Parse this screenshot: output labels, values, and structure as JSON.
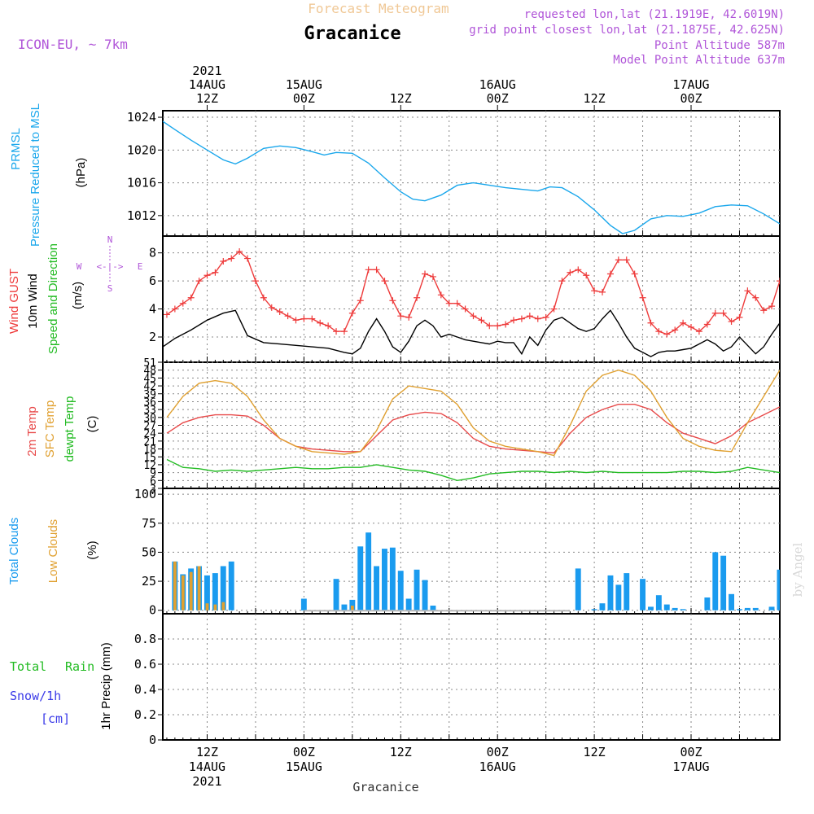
{
  "header": {
    "subtitle": "Forecast Meteogram",
    "location": "Gracanice",
    "model": "ICON-EU, ~ 7km",
    "requested": "requested lon,lat (21.1919E, 42.6019N)",
    "gridpoint": "grid point closest lon,lat (21.1875E, 42.625N)",
    "point_alt": "Point Altitude 587m",
    "model_alt": "Model Point Altitude 637m",
    "footer_location": "Gracanice",
    "watermark": "by Angel"
  },
  "colors": {
    "pressure": "#1aa7ec",
    "gust": "#ee3b3b",
    "wind": "#000000",
    "t2m": "#e84a4a",
    "sfc": "#e0a030",
    "dewpt": "#22bb22",
    "total_clouds": "#1a9bef",
    "low_clouds": "#e0a030",
    "rain": "#22bb22",
    "snow": "#3a3ae8",
    "purple": "#b055d8"
  },
  "time_axis": {
    "top_ticks": [
      {
        "h": 0,
        "l1": "2021",
        "l2": "14AUG",
        "l3": "12Z"
      },
      {
        "h": 12,
        "l1": "",
        "l2": "15AUG",
        "l3": "00Z"
      },
      {
        "h": 24,
        "l1": "",
        "l2": "",
        "l3": "12Z"
      },
      {
        "h": 36,
        "l1": "",
        "l2": "16AUG",
        "l3": "00Z"
      },
      {
        "h": 48,
        "l1": "",
        "l2": "",
        "l3": "12Z"
      },
      {
        "h": 60,
        "l1": "",
        "l2": "17AUG",
        "l3": "00Z"
      }
    ],
    "bottom_ticks": [
      {
        "h": 0,
        "l1": "12Z",
        "l2": "14AUG",
        "l3": "2021"
      },
      {
        "h": 12,
        "l1": "00Z",
        "l2": "15AUG",
        "l3": ""
      },
      {
        "h": 24,
        "l1": "12Z",
        "l2": "",
        "l3": ""
      },
      {
        "h": 36,
        "l1": "00Z",
        "l2": "16AUG",
        "l3": ""
      },
      {
        "h": 48,
        "l1": "12Z",
        "l2": "",
        "l3": ""
      },
      {
        "h": 60,
        "l1": "00Z",
        "l2": "17AUG",
        "l3": ""
      }
    ],
    "hour_range": [
      -5.5,
      71
    ]
  },
  "chart_data": [
    {
      "type": "line",
      "id": "pressure",
      "labels": [
        "PRMSL",
        "Pressure Reduced to MSL",
        "(hPa)"
      ],
      "ylim": [
        1009.5,
        1024.8
      ],
      "yticks": [
        1012,
        1016,
        1020,
        1024
      ],
      "series": [
        {
          "name": "PRMSL",
          "x": [
            -5.5,
            -4,
            -2,
            0,
            2,
            3.5,
            5,
            7,
            9,
            11,
            13,
            14.5,
            16,
            18,
            20,
            22,
            24,
            25.5,
            27,
            29,
            31,
            33,
            35,
            37,
            39,
            41,
            42.5,
            44,
            46,
            48,
            50,
            51.5,
            53,
            55,
            57,
            59,
            61,
            63,
            65,
            67,
            69,
            71
          ],
          "values": [
            1023.5,
            1022.5,
            1021.2,
            1020.0,
            1018.8,
            1018.3,
            1019.0,
            1020.2,
            1020.5,
            1020.3,
            1019.8,
            1019.4,
            1019.7,
            1019.6,
            1018.4,
            1016.6,
            1014.9,
            1014.0,
            1013.8,
            1014.5,
            1015.7,
            1016.0,
            1015.7,
            1015.4,
            1015.2,
            1015.0,
            1015.5,
            1015.4,
            1014.3,
            1012.7,
            1010.8,
            1009.8,
            1010.2,
            1011.6,
            1012.0,
            1011.9,
            1012.3,
            1013.1,
            1013.3,
            1013.2,
            1012.2,
            1011.0
          ]
        }
      ]
    },
    {
      "type": "line",
      "id": "wind",
      "labels": [
        "Wind GUST",
        "10m Wind",
        "Speed and Direction",
        "(m/s)"
      ],
      "compass": {
        "n": "N",
        "s": "S",
        "w": "W",
        "e": "E",
        "arrow": "<-|->"
      },
      "ylim": [
        0.2,
        9.2
      ],
      "yticks": [
        2,
        4,
        6,
        8
      ],
      "series": [
        {
          "name": "Wind GUST",
          "x": [
            -5,
            -4,
            -3,
            -2,
            -1,
            0,
            1,
            2,
            3,
            4,
            5,
            6,
            7,
            8,
            9,
            10,
            11,
            12,
            13,
            14,
            15,
            16,
            17,
            18,
            19,
            20,
            21,
            22,
            23,
            24,
            25,
            26,
            27,
            28,
            29,
            30,
            31,
            32,
            33,
            34,
            35,
            36,
            37,
            38,
            39,
            40,
            41,
            42,
            43,
            44,
            45,
            46,
            47,
            48,
            49,
            50,
            51,
            52,
            53,
            54,
            55,
            56,
            57,
            58,
            59,
            60,
            61,
            62,
            63,
            64,
            65,
            66,
            67,
            68,
            69,
            70,
            71
          ],
          "values": [
            3.6,
            4.0,
            4.4,
            4.8,
            6.0,
            6.4,
            6.6,
            7.4,
            7.6,
            8.1,
            7.6,
            6.0,
            4.8,
            4.1,
            3.8,
            3.5,
            3.2,
            3.3,
            3.3,
            3.0,
            2.8,
            2.4,
            2.4,
            3.7,
            4.6,
            6.8,
            6.8,
            6.0,
            4.6,
            3.5,
            3.4,
            4.8,
            6.5,
            6.3,
            5.0,
            4.4,
            4.4,
            4.0,
            3.5,
            3.2,
            2.8,
            2.8,
            2.9,
            3.2,
            3.3,
            3.5,
            3.3,
            3.4,
            4.0,
            6.0,
            6.6,
            6.8,
            6.4,
            5.3,
            5.2,
            6.5,
            7.5,
            7.5,
            6.5,
            4.8,
            3.0,
            2.4,
            2.2,
            2.5,
            3.0,
            2.7,
            2.4,
            2.9,
            3.7,
            3.7,
            3.1,
            3.4,
            5.3,
            4.8,
            3.9,
            4.2,
            6.0
          ]
        },
        {
          "name": "10m Wind",
          "x": [
            -5.5,
            -4,
            -2,
            0,
            2,
            3.5,
            5,
            7,
            9,
            11,
            13,
            15,
            17,
            18,
            19,
            20,
            21,
            22,
            23,
            24,
            25,
            26,
            27,
            28,
            29,
            30,
            31,
            32,
            33,
            34,
            35,
            36,
            37,
            38,
            39,
            40,
            41,
            42,
            43,
            44,
            45,
            46,
            47,
            48,
            49,
            50,
            51,
            52,
            53,
            54,
            55,
            56,
            57,
            58,
            59,
            60,
            61,
            62,
            63,
            64,
            65,
            66,
            67,
            68,
            69,
            70,
            71
          ],
          "values": [
            1.3,
            1.9,
            2.5,
            3.2,
            3.7,
            3.9,
            2.1,
            1.6,
            1.5,
            1.4,
            1.3,
            1.2,
            0.9,
            0.8,
            1.2,
            2.4,
            3.3,
            2.4,
            1.3,
            0.9,
            1.7,
            2.8,
            3.2,
            2.8,
            2.0,
            2.2,
            2.0,
            1.8,
            1.7,
            1.6,
            1.5,
            1.7,
            1.6,
            1.6,
            0.8,
            2.0,
            1.4,
            2.5,
            3.2,
            3.4,
            3.0,
            2.6,
            2.4,
            2.6,
            3.3,
            3.9,
            3.0,
            2.0,
            1.2,
            0.9,
            0.6,
            0.9,
            1.0,
            1.0,
            1.1,
            1.2,
            1.5,
            1.8,
            1.5,
            1.0,
            1.3,
            2.0,
            1.4,
            0.8,
            1.3,
            2.2,
            3.0
          ]
        }
      ]
    },
    {
      "type": "line",
      "id": "temperature",
      "labels": [
        "2m Temp",
        "SFC Temp",
        "dewpt Temp",
        "(C)"
      ],
      "ylim": [
        3,
        51
      ],
      "yticks": [
        3,
        6,
        9,
        12,
        15,
        18,
        21,
        24,
        27,
        30,
        33,
        36,
        39,
        42,
        45,
        48,
        51
      ],
      "series": [
        {
          "name": "2m Temp",
          "x": [
            -5,
            -3,
            -1,
            1,
            3,
            5,
            7,
            9,
            11,
            13,
            15,
            17,
            19,
            21,
            23,
            25,
            27,
            29,
            31,
            33,
            35,
            37,
            39,
            41,
            43,
            45,
            47,
            49,
            51,
            53,
            55,
            57,
            59,
            61,
            63,
            65,
            67,
            69,
            71
          ],
          "values": [
            24,
            28,
            30,
            31,
            31,
            30.5,
            27,
            22,
            19,
            18,
            17.5,
            17,
            17,
            23,
            29,
            31,
            32,
            31.5,
            28,
            22,
            19,
            18,
            17.5,
            17,
            16.5,
            24,
            30,
            33,
            35,
            35,
            33,
            28,
            24,
            22,
            20,
            23,
            28,
            31,
            34
          ]
        },
        {
          "name": "SFC Temp",
          "x": [
            -5,
            -3,
            -1,
            1,
            3,
            5,
            7,
            9,
            11,
            13,
            15,
            17,
            19,
            21,
            23,
            25,
            27,
            29,
            31,
            33,
            35,
            37,
            39,
            41,
            43,
            45,
            47,
            49,
            51,
            53,
            55,
            57,
            59,
            61,
            63,
            65,
            67,
            69,
            71
          ],
          "values": [
            30,
            38,
            43,
            44,
            43,
            38,
            29,
            22,
            19,
            17,
            16.5,
            16,
            17,
            25,
            37,
            42,
            41,
            40,
            35,
            26,
            21,
            19,
            18,
            17,
            15.5,
            27,
            40,
            46,
            48,
            46,
            40,
            30,
            22,
            19,
            17.5,
            17,
            28,
            38,
            48
          ]
        },
        {
          "name": "dewpt Temp",
          "x": [
            -5,
            -3,
            -1,
            1,
            3,
            5,
            7,
            9,
            11,
            13,
            15,
            17,
            19,
            21,
            23,
            25,
            27,
            29,
            31,
            33,
            35,
            37,
            39,
            41,
            43,
            45,
            47,
            49,
            51,
            53,
            55,
            57,
            59,
            61,
            63,
            65,
            67,
            69,
            71
          ],
          "values": [
            14,
            11,
            10.5,
            9.5,
            10,
            9.5,
            10,
            10.5,
            11,
            10.5,
            10.5,
            11,
            11,
            12,
            11,
            10,
            9.5,
            8,
            6,
            7,
            8.5,
            9,
            9.5,
            9.5,
            9,
            9.5,
            9,
            9.5,
            9,
            9,
            9,
            9,
            9.5,
            9.5,
            9,
            9.5,
            11,
            10,
            9
          ]
        }
      ]
    },
    {
      "type": "bar",
      "id": "clouds",
      "labels": [
        "Total Clouds",
        "Low Clouds",
        "(%)"
      ],
      "ylim": [
        -3,
        105
      ],
      "yticks": [
        0,
        25,
        50,
        75,
        100
      ],
      "series": [
        {
          "name": "Total Clouds",
          "x": [
            -4,
            -3,
            -2,
            -1,
            0,
            1,
            2,
            3,
            12,
            16,
            17,
            18,
            19,
            20,
            21,
            22,
            23,
            24,
            25,
            26,
            27,
            28,
            46,
            48,
            49,
            50,
            51,
            52,
            54,
            55,
            56,
            57,
            58,
            59,
            62,
            63,
            64,
            65,
            66,
            67,
            68,
            70,
            71
          ],
          "values": [
            42,
            31,
            36,
            38,
            30,
            32,
            38,
            42,
            10,
            27,
            5,
            9,
            55,
            67,
            38,
            53,
            54,
            34,
            10,
            35,
            26,
            4,
            36,
            1,
            6,
            30,
            22,
            32,
            27,
            3,
            13,
            5,
            2,
            1,
            11,
            50,
            47,
            14,
            1,
            2,
            2,
            3,
            35
          ]
        },
        {
          "name": "Low Clouds",
          "x": [
            -4,
            -3,
            -2,
            -1,
            0,
            1,
            2,
            18
          ],
          "values": [
            42,
            30,
            33,
            38,
            6,
            5,
            7,
            4
          ]
        }
      ]
    },
    {
      "type": "bar",
      "id": "precip",
      "labels": [
        "Total",
        "Rain",
        "Snow/1h",
        "[cm]",
        "1hr Precip (mm)"
      ],
      "ylim": [
        0,
        1
      ],
      "yticks": [
        0,
        0.2,
        0.4,
        0.6,
        0.8
      ],
      "series": [
        {
          "name": "Rain",
          "x": [],
          "values": []
        }
      ]
    }
  ]
}
